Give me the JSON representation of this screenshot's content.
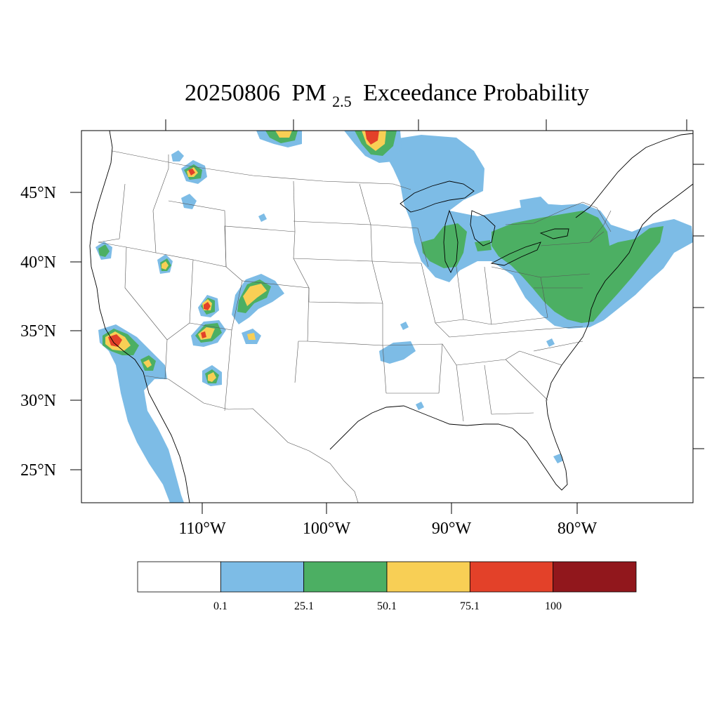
{
  "title": {
    "date": "20250806",
    "pm": "PM",
    "sub": "2.5",
    "rest": "Exceedance Probability"
  },
  "axes": {
    "lon_labels": [
      "110°W",
      "100°W",
      "90°W",
      "80°W"
    ],
    "lat_labels": [
      "45°N",
      "40°N",
      "35°N",
      "30°N",
      "25°N"
    ]
  },
  "colorbar": {
    "colors": [
      "#ffffff",
      "#7dbce6",
      "#4caf63",
      "#f8cf55",
      "#e34129",
      "#91171c"
    ],
    "labels": [
      "0.1",
      "25.1",
      "50.1",
      "75.1",
      "100"
    ]
  },
  "levels": {
    "blue": "#7dbce6",
    "green": "#4caf63",
    "yellow": "#f8cf55",
    "red": "#e34129"
  }
}
